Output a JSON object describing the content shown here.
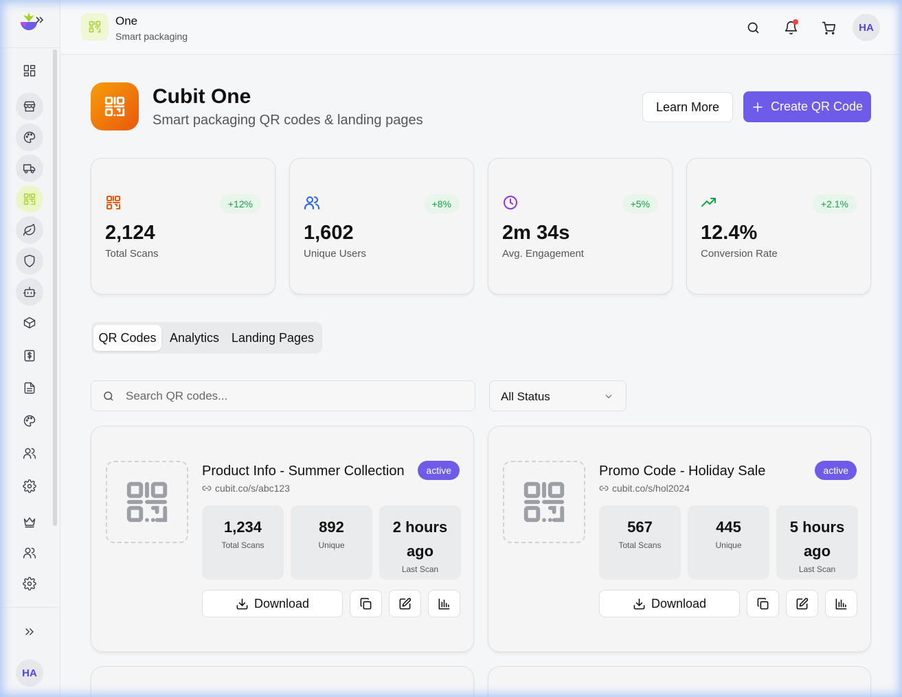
{
  "topbar": {
    "app_title": "One",
    "app_subtitle": "Smart packaging",
    "avatar_initials": "HA"
  },
  "sidebar": {
    "avatar_initials": "HA",
    "items": [
      "dashboard-icon",
      "store-icon",
      "palette-icon",
      "truck-icon",
      "qr-code-icon",
      "leaf-icon",
      "shield-icon",
      "bot-icon",
      "package-icon",
      "dollar-icon",
      "document-icon",
      "palette-icon",
      "users-icon",
      "gear-icon",
      "crown-icon",
      "users-icon",
      "gear-icon"
    ],
    "active_item": "qr-code-icon"
  },
  "header": {
    "title": "Cubit One",
    "subtitle": "Smart packaging QR codes & landing pages",
    "learn_more_label": "Learn More",
    "create_label": "Create QR Code"
  },
  "stats": [
    {
      "value": "2,124",
      "label": "Total Scans",
      "change": "+12%",
      "icon": "qr-code-icon",
      "color": "#ea580c"
    },
    {
      "value": "1,602",
      "label": "Unique Users",
      "change": "+8%",
      "icon": "users-icon",
      "color": "#2563eb"
    },
    {
      "value": "2m 34s",
      "label": "Avg. Engagement",
      "change": "+5%",
      "icon": "clock-icon",
      "color": "#9333ea"
    },
    {
      "value": "12.4%",
      "label": "Conversion Rate",
      "change": "+2.1%",
      "icon": "trending-up-icon",
      "color": "#16a34a"
    }
  ],
  "tabs": [
    {
      "label": "QR Codes",
      "active": true
    },
    {
      "label": "Analytics",
      "active": false
    },
    {
      "label": "Landing Pages",
      "active": false
    }
  ],
  "filters": {
    "search_placeholder": "Search QR codes...",
    "status_value": "All Status"
  },
  "cards": [
    {
      "title": "Product Info - Summer Collection",
      "status": "active",
      "url": "cubit.co/s/abc123",
      "total_scans": "1,234",
      "total_scans_label": "Total Scans",
      "unique": "892",
      "unique_label": "Unique",
      "last_scan": "2 hours ago",
      "last_scan_label": "Last Scan",
      "download_label": "Download"
    },
    {
      "title": "Promo Code - Holiday Sale",
      "status": "active",
      "url": "cubit.co/s/hol2024",
      "total_scans": "567",
      "total_scans_label": "Total Scans",
      "unique": "445",
      "unique_label": "Unique",
      "last_scan": "5 hours ago",
      "last_scan_label": "Last Scan",
      "download_label": "Download"
    }
  ],
  "colors": {
    "accent": "#6d5ce8",
    "brand_green": "#a7d129",
    "success": "#16a34a",
    "hero_orange": "#ea580c"
  }
}
